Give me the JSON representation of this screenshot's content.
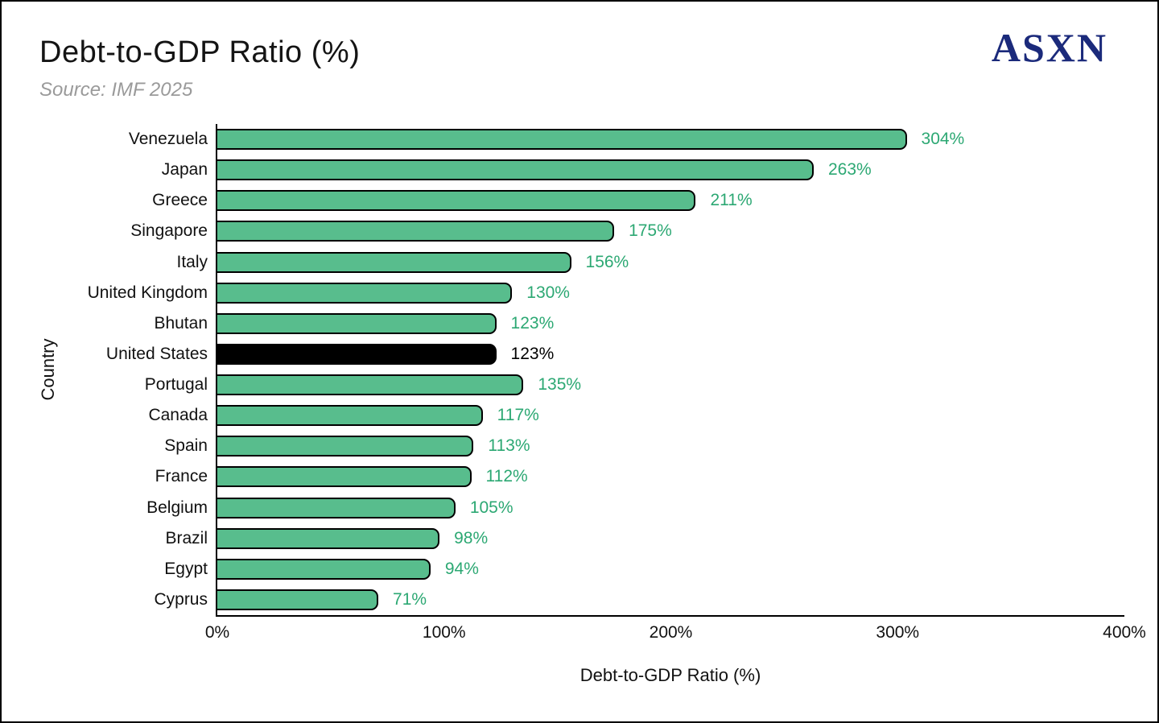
{
  "header": {
    "title": "Debt-to-GDP Ratio (%)",
    "subtitle": "Source: IMF 2025",
    "logo_text": "ASXN"
  },
  "chart_data": {
    "type": "bar",
    "orientation": "horizontal",
    "title": "Debt-to-GDP Ratio (%)",
    "subtitle": "Source: IMF 2025",
    "xlabel": "Debt-to-GDP Ratio (%)",
    "ylabel": "Country",
    "xlim": [
      0,
      400
    ],
    "grid": false,
    "legend": "none",
    "xticks": [
      {
        "value": 0,
        "label": "0%"
      },
      {
        "value": 100,
        "label": "100%"
      },
      {
        "value": 200,
        "label": "200%"
      },
      {
        "value": 300,
        "label": "300%"
      },
      {
        "value": 400,
        "label": "400%"
      }
    ],
    "bars": [
      {
        "category": "Venezuela",
        "value": 304,
        "label": "304%"
      },
      {
        "category": "Japan",
        "value": 263,
        "label": "263%"
      },
      {
        "category": "Greece",
        "value": 211,
        "label": "211%"
      },
      {
        "category": "Singapore",
        "value": 175,
        "label": "175%"
      },
      {
        "category": "Italy",
        "value": 156,
        "label": "156%"
      },
      {
        "category": "United Kingdom",
        "value": 130,
        "label": "130%"
      },
      {
        "category": "Bhutan",
        "value": 123,
        "label": "123%"
      },
      {
        "category": "United States",
        "value": 123,
        "label": "123%",
        "highlight": true
      },
      {
        "category": "Portugal",
        "value": 135,
        "label": "135%"
      },
      {
        "category": "Canada",
        "value": 117,
        "label": "117%"
      },
      {
        "category": "Spain",
        "value": 113,
        "label": "113%"
      },
      {
        "category": "France",
        "value": 112,
        "label": "112%"
      },
      {
        "category": "Belgium",
        "value": 105,
        "label": "105%"
      },
      {
        "category": "Brazil",
        "value": 98,
        "label": "98%"
      },
      {
        "category": "Egypt",
        "value": 94,
        "label": "94%"
      },
      {
        "category": "Cyprus",
        "value": 71,
        "label": "71%"
      }
    ],
    "highlight_category": "United States",
    "colors": {
      "bar_fill": "#58bd8d",
      "bar_border": "#000000",
      "highlight_bar_fill": "#000000",
      "value_label": "#2ca873",
      "highlight_value_label": "#000000",
      "logo": "#1b2a7b",
      "title": "#141414",
      "subtitle": "#9a9a9a",
      "axis": "#000000"
    }
  }
}
